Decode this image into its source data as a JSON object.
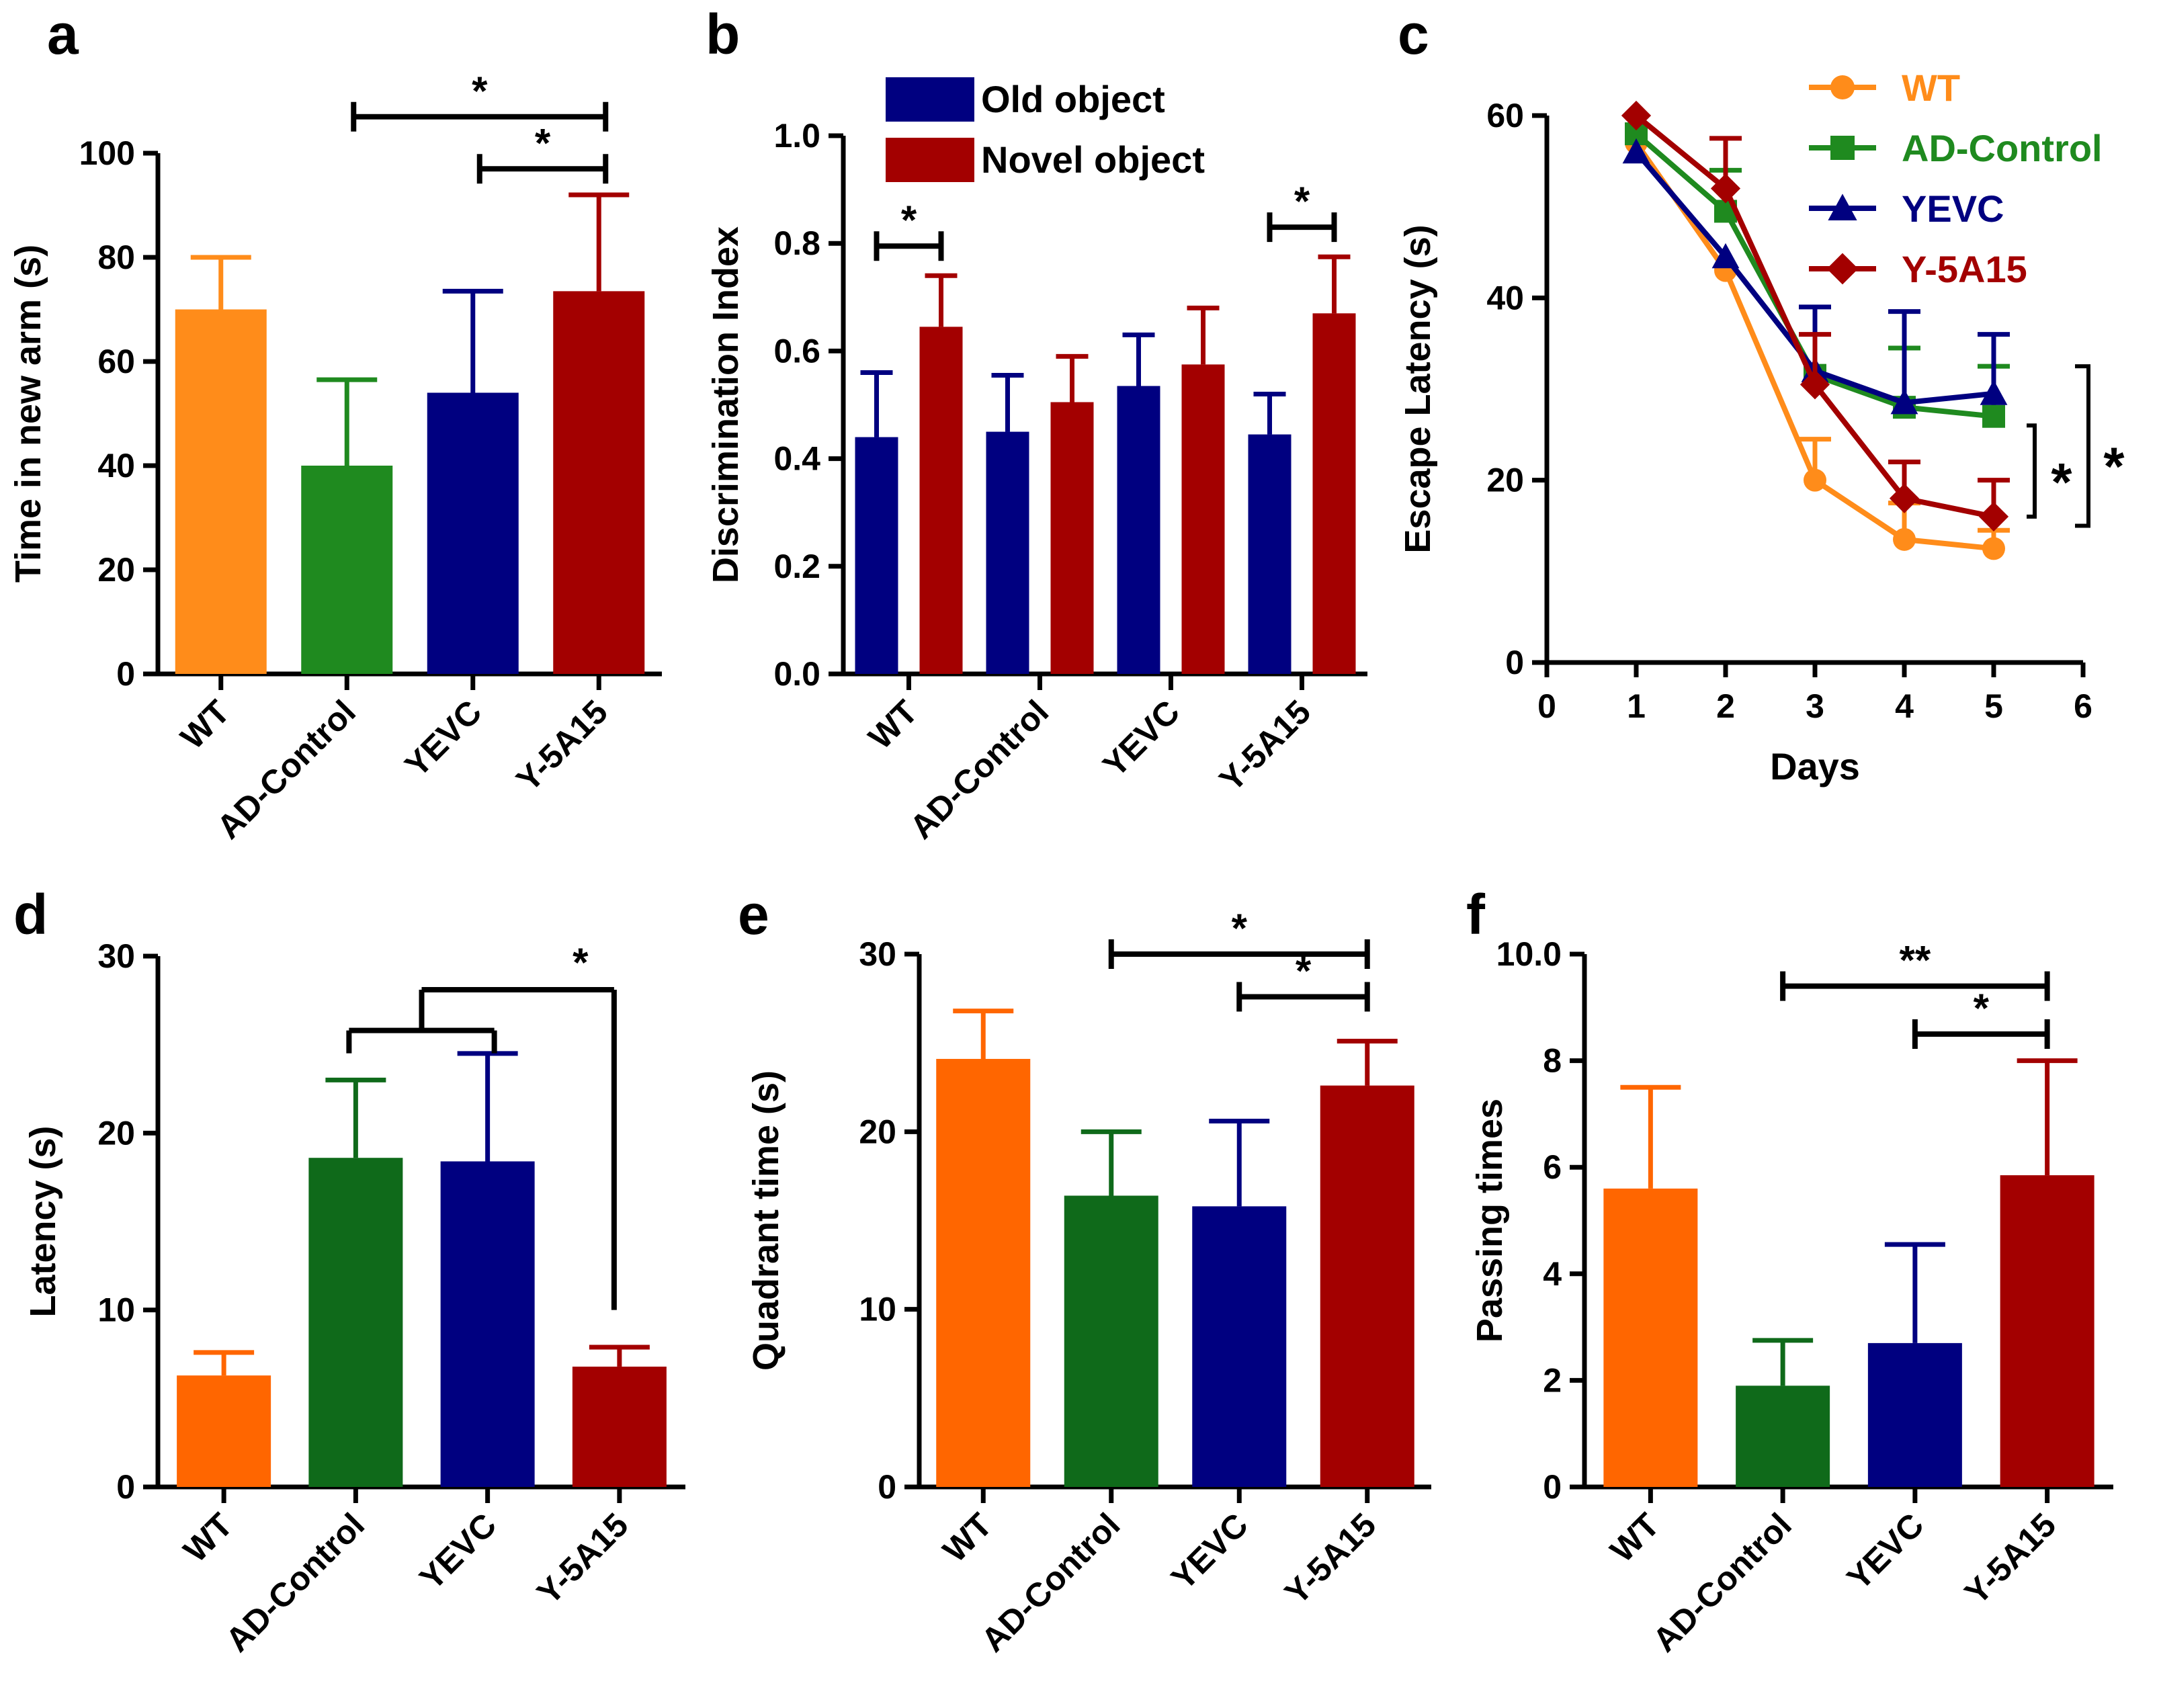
{
  "figure": {
    "colors": {
      "WT": "#ff8c1a",
      "WT_bar_def": "#ff6600",
      "AD-Control": "#1f8a1f",
      "AD-Control_dark": "#0f6a1a",
      "YEVC": "#000080",
      "Y-5A15": "#a30000",
      "axis": "#000000"
    }
  },
  "chart_data": [
    {
      "id": "a",
      "letter": "a",
      "type": "bar",
      "ylabel": "Time in new arm (s)",
      "ylim": [
        0,
        100
      ],
      "yticks": [
        0,
        20,
        40,
        60,
        80,
        100
      ],
      "categories": [
        "WT",
        "AD-Control",
        "YEVC",
        "Y-5A15"
      ],
      "values": [
        70,
        40,
        54,
        73.5
      ],
      "errors": [
        10,
        16.5,
        19.5,
        18.5
      ],
      "colors": [
        "#ff8c1a",
        "#1f8a1f",
        "#000080",
        "#a30000"
      ],
      "significance": [
        {
          "from": 1,
          "to": 3,
          "y": 107,
          "label": "*"
        },
        {
          "from": 2,
          "to": 3,
          "y": 97,
          "label": "*"
        }
      ]
    },
    {
      "id": "b",
      "letter": "b",
      "type": "bar",
      "ylabel": "Discrimination Index",
      "ylim": [
        0,
        1.0
      ],
      "yticks": [
        "0.0",
        "0.2",
        "0.4",
        "0.6",
        "0.8",
        "1.0"
      ],
      "categories": [
        "WT",
        "AD-Control",
        "YEVC",
        "Y-5A15"
      ],
      "series": [
        {
          "name": "Old object",
          "color": "#000080",
          "values": [
            0.44,
            0.45,
            0.535,
            0.445
          ],
          "errors": [
            0.12,
            0.105,
            0.095,
            0.075
          ]
        },
        {
          "name": "Novel object",
          "color": "#a30000",
          "values": [
            0.645,
            0.505,
            0.575,
            0.67
          ],
          "errors": [
            0.095,
            0.085,
            0.105,
            0.105
          ]
        }
      ],
      "significance": [
        {
          "group": 0,
          "y": 0.795,
          "label": "*"
        },
        {
          "group": 3,
          "y": 0.83,
          "label": "*"
        }
      ]
    },
    {
      "id": "c",
      "letter": "c",
      "type": "line",
      "xlabel": "Days",
      "ylabel": "Escape Latency (s)",
      "xlim": [
        0,
        6
      ],
      "ylim": [
        0,
        60
      ],
      "xticks": [
        0,
        1,
        2,
        3,
        4,
        5,
        6
      ],
      "yticks": [
        0,
        20,
        40,
        60
      ],
      "x": [
        1,
        2,
        3,
        4,
        5
      ],
      "series": [
        {
          "name": "WT",
          "color": "#ff8c1a",
          "marker": "circle",
          "values": [
            57,
            43,
            20,
            13.5,
            12.5
          ],
          "errors": [
            0,
            0,
            4.5,
            4,
            2
          ]
        },
        {
          "name": "AD-Control",
          "color": "#1f8a1f",
          "marker": "square",
          "values": [
            58,
            49.5,
            31.5,
            28,
            27
          ],
          "errors": [
            0,
            4.5,
            0,
            6.5,
            5.5
          ]
        },
        {
          "name": "YEVC",
          "color": "#000080",
          "marker": "triangle",
          "values": [
            56,
            44.5,
            32,
            28.5,
            29.5
          ],
          "errors": [
            0,
            0,
            7,
            10,
            6.5
          ]
        },
        {
          "name": "Y-5A15",
          "color": "#a30000",
          "marker": "diamond",
          "values": [
            60,
            52,
            30.5,
            18,
            16
          ],
          "errors": [
            0,
            5.5,
            5.5,
            4,
            4
          ]
        }
      ],
      "significance": [
        {
          "y1": 26,
          "y2": 16,
          "label": "*"
        },
        {
          "y1": 29.5,
          "y2": 16,
          "label": "*"
        }
      ]
    },
    {
      "id": "d",
      "letter": "d",
      "type": "bar",
      "ylabel": "Latency (s)",
      "ylim": [
        0,
        30
      ],
      "yticks": [
        0,
        10,
        20,
        30
      ],
      "categories": [
        "WT",
        "AD-Control",
        "YEVC",
        "Y-5A15"
      ],
      "values": [
        6.3,
        18.6,
        18.4,
        6.8
      ],
      "errors": [
        1.3,
        4.4,
        6.1,
        1.1
      ],
      "colors": [
        "#ff6600",
        "#0f6a1a",
        "#000080",
        "#a30000"
      ],
      "significance": [
        {
          "label": "*"
        }
      ]
    },
    {
      "id": "e",
      "letter": "e",
      "type": "bar",
      "ylabel": "Quadrant time (s)",
      "ylim": [
        0,
        30
      ],
      "yticks": [
        0,
        10,
        20,
        30
      ],
      "categories": [
        "WT",
        "AD-Control",
        "YEVC",
        "Y-5A15"
      ],
      "values": [
        24.1,
        16.4,
        15.8,
        22.6
      ],
      "errors": [
        2.7,
        3.6,
        4.8,
        2.5
      ],
      "colors": [
        "#ff6600",
        "#0f6a1a",
        "#000080",
        "#a30000"
      ],
      "significance": [
        {
          "from": 1,
          "to": 3,
          "y": 30,
          "label": "*"
        },
        {
          "from": 2,
          "to": 3,
          "y": 27.6,
          "label": "*"
        }
      ]
    },
    {
      "id": "f",
      "letter": "f",
      "type": "bar",
      "ylabel": "Passing times",
      "ylim": [
        0,
        10
      ],
      "yticks": [
        "0",
        "2",
        "4",
        "6",
        "8",
        "10.0"
      ],
      "categories": [
        "WT",
        "AD-Control",
        "YEVC",
        "Y-5A15"
      ],
      "values": [
        5.6,
        1.9,
        2.7,
        5.85
      ],
      "errors": [
        1.9,
        0.85,
        1.85,
        2.15
      ],
      "colors": [
        "#ff6600",
        "#0f6a1a",
        "#000080",
        "#a30000"
      ],
      "significance": [
        {
          "from": 1,
          "to": 3,
          "y": 9.4,
          "label": "**"
        },
        {
          "from": 2,
          "to": 3,
          "y": 8.5,
          "label": "*"
        }
      ]
    }
  ]
}
